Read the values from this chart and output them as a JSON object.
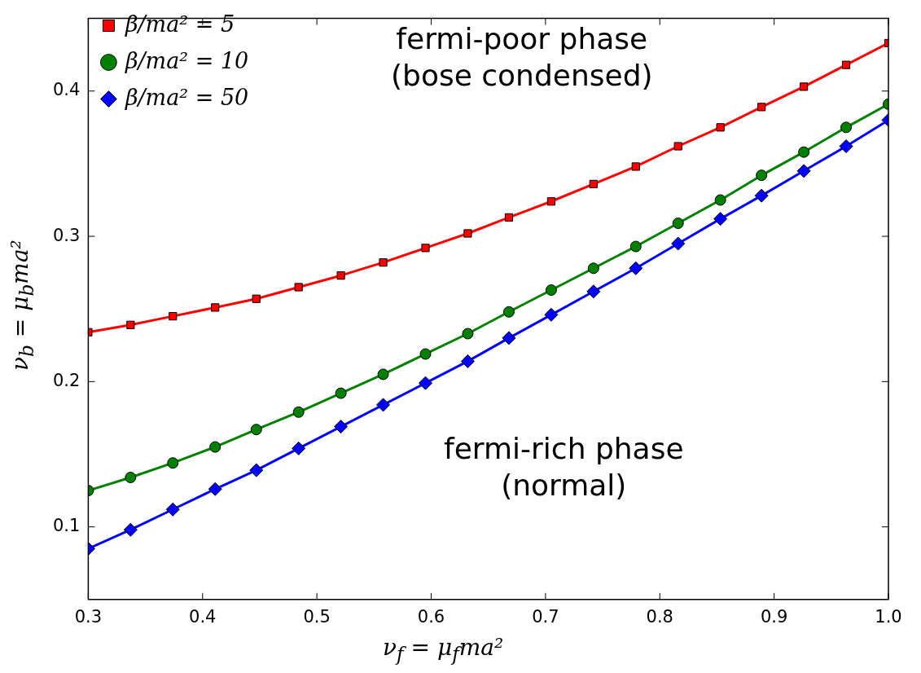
{
  "chart_data": {
    "type": "line",
    "xlabel": "ν$_{f}$ = μ$_{f}$ma²",
    "ylabel": "ν$_{b}$ = μ$_{b}$ma²",
    "x": [
      0.3,
      0.337,
      0.374,
      0.411,
      0.447,
      0.484,
      0.521,
      0.558,
      0.595,
      0.632,
      0.668,
      0.705,
      0.742,
      0.779,
      0.816,
      0.853,
      0.889,
      0.926,
      0.963,
      1.0
    ],
    "series": [
      {
        "name": "β/ma² = 5",
        "color": "#ff0000",
        "marker": "square",
        "values": [
          0.234,
          0.239,
          0.245,
          0.251,
          0.257,
          0.265,
          0.273,
          0.282,
          0.292,
          0.302,
          0.313,
          0.324,
          0.336,
          0.348,
          0.362,
          0.375,
          0.389,
          0.403,
          0.418,
          0.433
        ]
      },
      {
        "name": "β/ma² = 10",
        "color": "#008000",
        "marker": "circle",
        "values": [
          0.125,
          0.134,
          0.144,
          0.155,
          0.167,
          0.179,
          0.192,
          0.205,
          0.219,
          0.233,
          0.248,
          0.263,
          0.278,
          0.293,
          0.309,
          0.325,
          0.342,
          0.358,
          0.375,
          0.391
        ]
      },
      {
        "name": "β/ma² = 50",
        "color": "#0000ff",
        "marker": "diamond",
        "values": [
          0.085,
          0.098,
          0.112,
          0.126,
          0.139,
          0.154,
          0.169,
          0.184,
          0.199,
          0.214,
          0.23,
          0.246,
          0.262,
          0.278,
          0.295,
          0.312,
          0.328,
          0.345,
          0.362,
          0.38
        ]
      }
    ],
    "xlim": [
      0.3,
      1.0
    ],
    "xticks": [
      0.3,
      0.4,
      0.5,
      0.6,
      0.7,
      0.8,
      0.9,
      {
        "value": 1.0,
        "label": "1.0"
      }
    ],
    "ylim": [
      0.05,
      0.45
    ],
    "yticks": [
      0.1,
      0.2,
      0.3,
      0.4
    ],
    "grid": false,
    "legend": "top left",
    "line_style": "solid",
    "annotations": [
      "fermi-poor phase\n(bose condensed)",
      "fermi-rich phase\n(normal)"
    ]
  }
}
